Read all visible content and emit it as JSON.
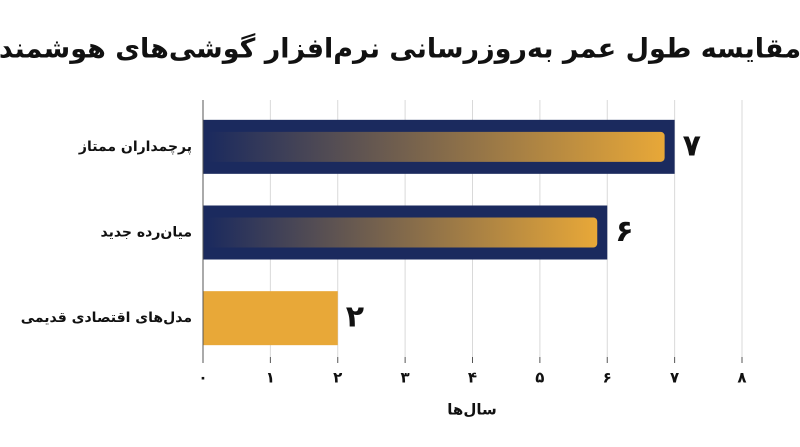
{
  "chart_data": {
    "type": "hbar",
    "title": "مقایسه طول عمر به‌روزرسانی نرم‌افزار گوشی‌های هوشمند",
    "categories": [
      "پرچمداران ممتاز",
      "میان‌رده جدید",
      "مدل‌های اقتصادی قدیمی"
    ],
    "values": [
      7,
      6,
      2
    ],
    "value_labels": [
      "۷",
      "۶",
      "۲"
    ],
    "colors": [
      "#1b2a5e",
      "#1b2a5e",
      "#e8a838"
    ],
    "x_label": "سال‌ها",
    "xlim": [
      0,
      8
    ],
    "xticks": [
      {
        "value": 0,
        "label": "۰"
      },
      {
        "value": 1,
        "label": "۱"
      },
      {
        "value": 2,
        "label": "۲"
      },
      {
        "value": 3,
        "label": "۳"
      },
      {
        "value": 4,
        "label": "۴"
      },
      {
        "value": 5,
        "label": "۵"
      },
      {
        "value": 6,
        "label": "۶"
      },
      {
        "value": 7,
        "label": "۷"
      },
      {
        "value": 8,
        "label": "۸"
      }
    ],
    "grid": true
  }
}
